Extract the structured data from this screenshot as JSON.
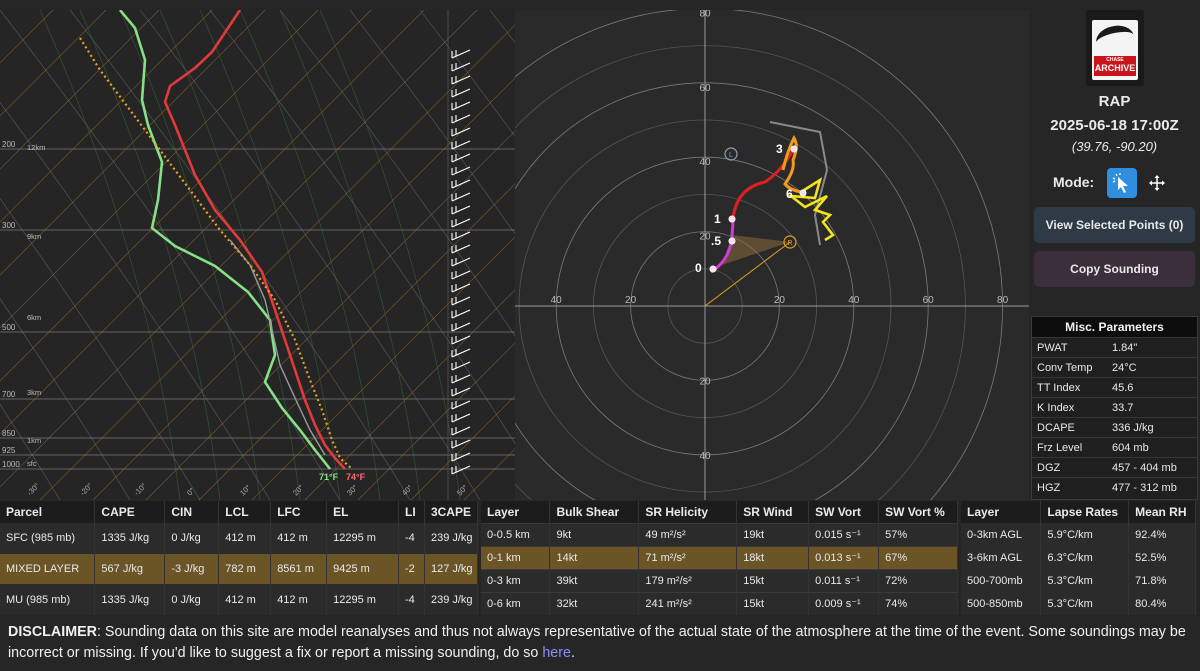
{
  "colors": {
    "background": "#262626",
    "temperature": "#e23a3a",
    "dewpoint": "#86e086",
    "parcel": "#e6a021",
    "highlight_row": "#6b5426",
    "accent_button": "#2f8fde",
    "hodo_0_1": "#d63ad6",
    "hodo_1_3": "#e02020",
    "hodo_3_6": "#f29a1a",
    "hodo_6_9": "#f2e61a"
  },
  "skewt": {
    "pressure_labels": [
      "200",
      "300",
      "500",
      "700",
      "850",
      "925",
      "1000"
    ],
    "height_labels": [
      "12km",
      "9km",
      "6km",
      "3km",
      "1km",
      "sfc"
    ],
    "temp_axis_labels": [
      "-30°",
      "-20°",
      "-10°",
      "0°",
      "10°",
      "20°",
      "30°",
      "40°",
      "50°"
    ],
    "surface_dewpoint": "71°F",
    "surface_temp": "74°F"
  },
  "hodograph": {
    "ring_labels_top": [
      "80",
      "60",
      "40",
      "20"
    ],
    "ring_labels_bottom": [
      "20",
      "40"
    ],
    "axis_labels_left": [
      "40",
      "20"
    ],
    "axis_labels_right": [
      "20",
      "40",
      "60",
      "80"
    ],
    "point_labels": [
      "0",
      ".5",
      "1",
      "3",
      "6"
    ],
    "left_mover_label": "L",
    "right_mover_label": "R"
  },
  "sidebar": {
    "logo_text": "ARCHIVE",
    "logo_small": "CHASE",
    "model": "RAP",
    "datetime": "2025-06-18 17:00Z",
    "coords": "(39.76, -90.20)",
    "mode_label": "Mode:",
    "icons": [
      "pointer-click-icon",
      "move-arrows-icon"
    ],
    "view_button": "View Selected Points (0)",
    "copy_button": "Copy Sounding"
  },
  "misc": {
    "title": "Misc. Parameters",
    "rows": [
      {
        "k": "PWAT",
        "v": "1.84\""
      },
      {
        "k": "Conv Temp",
        "v": "24°C"
      },
      {
        "k": "TT Index",
        "v": "45.6"
      },
      {
        "k": "K Index",
        "v": "33.7"
      },
      {
        "k": "DCAPE",
        "v": "336 J/kg"
      },
      {
        "k": "Frz Level",
        "v": "604 mb"
      },
      {
        "k": "DGZ",
        "v": "457 - 404 mb"
      },
      {
        "k": "HGZ",
        "v": "477 - 312 mb"
      }
    ]
  },
  "parcel_table": {
    "headers": [
      "Parcel",
      "CAPE",
      "CIN",
      "LCL",
      "LFC",
      "EL",
      "LI",
      "3CAPE"
    ],
    "rows": [
      [
        "SFC (985 mb)",
        "1335 J/kg",
        "0 J/kg",
        "412 m",
        "412 m",
        "12295 m",
        "-4",
        "239 J/kg"
      ],
      [
        "MIXED LAYER",
        "567 J/kg",
        "-3 J/kg",
        "782 m",
        "8561 m",
        "9425 m",
        "-2",
        "127 J/kg"
      ],
      [
        "MU (985 mb)",
        "1335 J/kg",
        "0 J/kg",
        "412 m",
        "412 m",
        "12295 m",
        "-4",
        "239 J/kg"
      ]
    ]
  },
  "shear_table": {
    "headers": [
      "Layer",
      "Bulk Shear",
      "SR Helicity",
      "SR Wind",
      "SW Vort",
      "SW Vort %"
    ],
    "rows": [
      [
        "0-0.5 km",
        "9kt",
        "49 m²/s²",
        "19kt",
        "0.015 s⁻¹",
        "57%"
      ],
      [
        "0-1 km",
        "14kt",
        "71 m²/s²",
        "18kt",
        "0.013 s⁻¹",
        "67%"
      ],
      [
        "0-3 km",
        "39kt",
        "179 m²/s²",
        "15kt",
        "0.011 s⁻¹",
        "72%"
      ],
      [
        "0-6 km",
        "32kt",
        "241 m²/s²",
        "15kt",
        "0.009 s⁻¹",
        "74%"
      ]
    ]
  },
  "lapse_table": {
    "headers": [
      "Layer",
      "Lapse Rates",
      "Mean RH"
    ],
    "rows": [
      [
        "0-3km AGL",
        "5.9°C/km",
        "92.4%"
      ],
      [
        "3-6km AGL",
        "6.3°C/km",
        "52.5%"
      ],
      [
        "500-700mb",
        "5.3°C/km",
        "71.8%"
      ],
      [
        "500-850mb",
        "5.3°C/km",
        "80.4%"
      ]
    ]
  },
  "disclaimer": {
    "label": "DISCLAIMER",
    "text": ": Sounding data on this site are model reanalyses and thus not always representative of the actual state of the atmosphere at the time of the event. Some soundings may be incorrect or missing. If you'd like to suggest a fix or report a missing sounding, do so ",
    "link": "here",
    "end": "."
  }
}
